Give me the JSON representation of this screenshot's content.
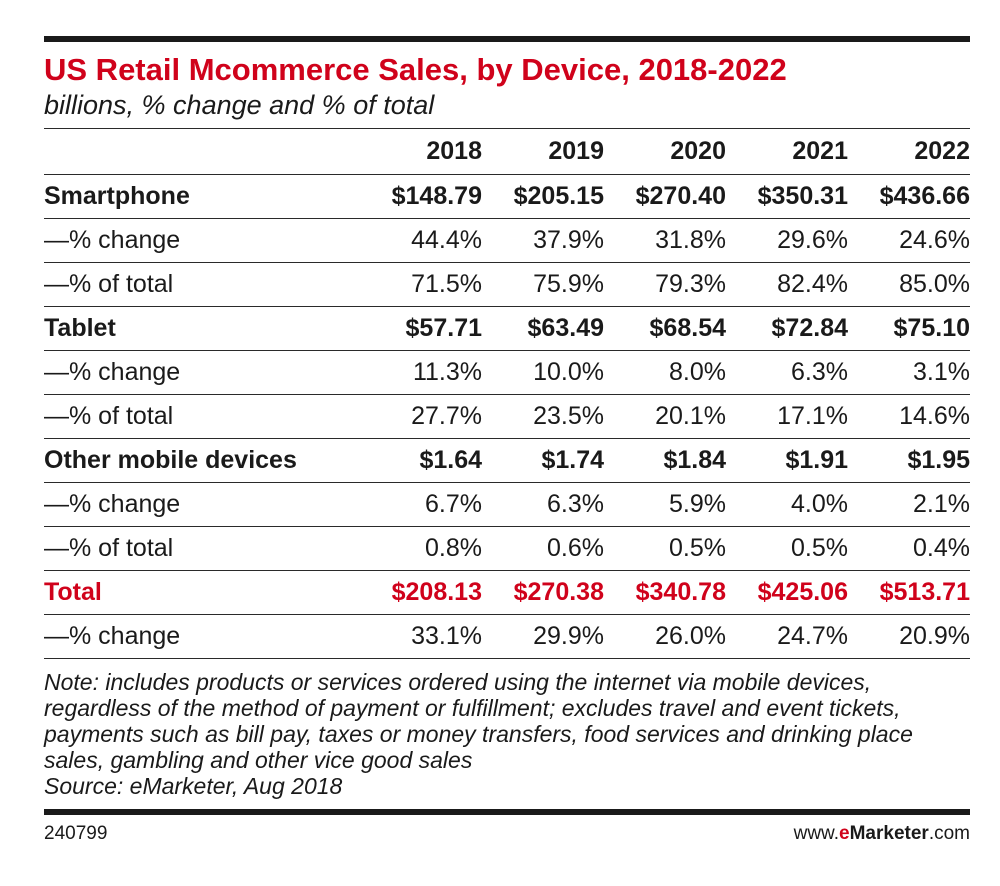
{
  "chart_data": {
    "type": "table",
    "title": "US Retail Mcommerce Sales, by Device, 2018-2022",
    "subtitle": "billions, % change and % of total",
    "columns": [
      "2018",
      "2019",
      "2020",
      "2021",
      "2022"
    ],
    "rows": [
      {
        "label": "Smartphone",
        "kind": "main",
        "values": [
          "$148.79",
          "$205.15",
          "$270.40",
          "$350.31",
          "$436.66"
        ]
      },
      {
        "label": "—% change",
        "kind": "sub",
        "values": [
          "44.4%",
          "37.9%",
          "31.8%",
          "29.6%",
          "24.6%"
        ]
      },
      {
        "label": "—% of total",
        "kind": "sub",
        "values": [
          "71.5%",
          "75.9%",
          "79.3%",
          "82.4%",
          "85.0%"
        ]
      },
      {
        "label": "Tablet",
        "kind": "main",
        "values": [
          "$57.71",
          "$63.49",
          "$68.54",
          "$72.84",
          "$75.10"
        ]
      },
      {
        "label": "—% change",
        "kind": "sub",
        "values": [
          "11.3%",
          "10.0%",
          "8.0%",
          "6.3%",
          "3.1%"
        ]
      },
      {
        "label": "—% of total",
        "kind": "sub",
        "values": [
          "27.7%",
          "23.5%",
          "20.1%",
          "17.1%",
          "14.6%"
        ]
      },
      {
        "label": "Other mobile devices",
        "kind": "main",
        "values": [
          "$1.64",
          "$1.74",
          "$1.84",
          "$1.91",
          "$1.95"
        ]
      },
      {
        "label": "—% change",
        "kind": "sub",
        "values": [
          "6.7%",
          "6.3%",
          "5.9%",
          "4.0%",
          "2.1%"
        ]
      },
      {
        "label": "—% of total",
        "kind": "sub",
        "values": [
          "0.8%",
          "0.6%",
          "0.5%",
          "0.5%",
          "0.4%"
        ]
      },
      {
        "label": "Total",
        "kind": "total",
        "values": [
          "$208.13",
          "$270.38",
          "$340.78",
          "$425.06",
          "$513.71"
        ]
      },
      {
        "label": "—% change",
        "kind": "sub",
        "values": [
          "33.1%",
          "29.9%",
          "26.0%",
          "24.7%",
          "20.9%"
        ]
      }
    ],
    "note": "Note: includes products or services ordered using the internet via mobile devices, regardless of the method of payment or fulfillment; excludes travel and event tickets, payments such as bill pay, taxes or money transfers, food services and drinking place sales, gambling and other vice good sales",
    "source": "Source: eMarketer, Aug 2018"
  },
  "footer": {
    "chart_id": "240799",
    "brand_prefix": "www.",
    "brand_e": "e",
    "brand_name": "Marketer",
    "brand_suffix": ".com"
  },
  "colors": {
    "accent": "#d0021b",
    "text": "#1a1a1a"
  }
}
